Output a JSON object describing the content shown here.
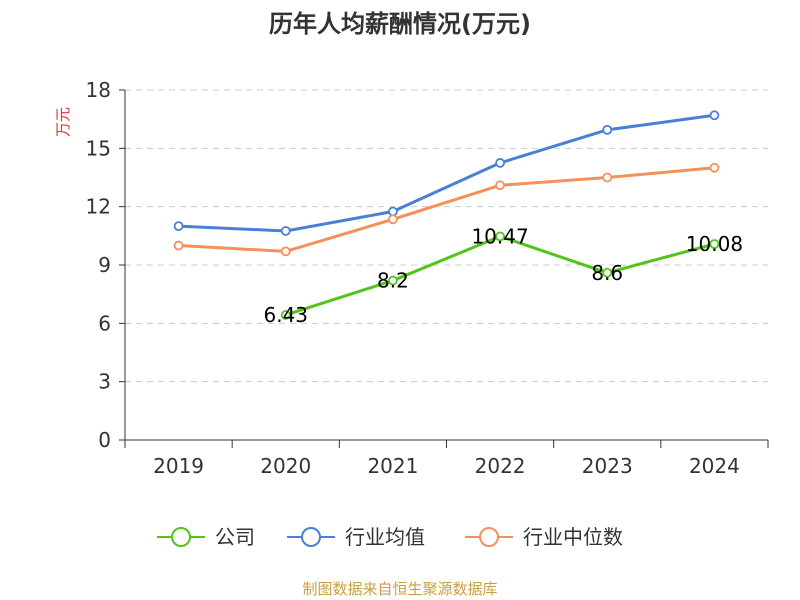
{
  "chart_data": {
    "type": "line",
    "title": "历年人均薪酬情况(万元)",
    "ylabel": "万元",
    "xlabel": "",
    "ylim": [
      0,
      18
    ],
    "yticks": [
      0,
      3,
      6,
      9,
      12,
      15,
      18
    ],
    "grid": true,
    "legend_position": "bottom",
    "categories": [
      "2019",
      "2020",
      "2021",
      "2022",
      "2023",
      "2024"
    ],
    "series": [
      {
        "name": "公司",
        "color": "#52c41a",
        "values": [
          null,
          6.43,
          8.2,
          10.47,
          8.6,
          10.08
        ],
        "labels": [
          null,
          "6.43",
          "8.2",
          "10.47",
          "8.6",
          "10.08"
        ]
      },
      {
        "name": "行业均值",
        "color": "#4a7fd8",
        "values": [
          11.0,
          10.75,
          11.75,
          14.25,
          15.95,
          16.7
        ],
        "labels": []
      },
      {
        "name": "行业中位数",
        "color": "#f5905a",
        "values": [
          10.0,
          9.7,
          11.35,
          13.1,
          13.5,
          14.0
        ],
        "labels": []
      }
    ],
    "source": "制图数据来自恒生聚源数据库",
    "ylabel_color": "#e03030",
    "source_color": "#c8a040"
  }
}
